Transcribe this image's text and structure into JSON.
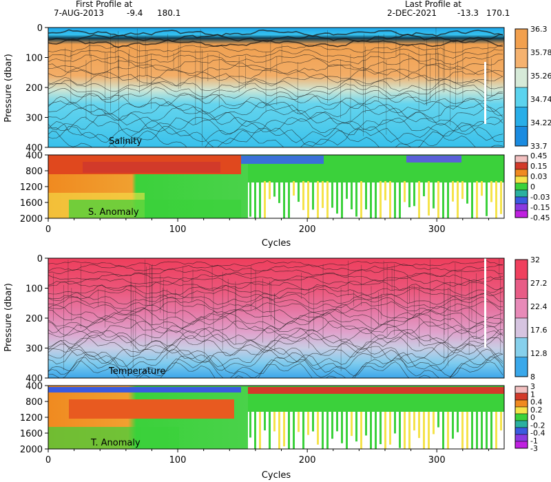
{
  "header": {
    "first_label": "First Profile at",
    "first_date": "7-AUG-2013",
    "first_lat": "-9.4",
    "first_lon": "180.1",
    "last_label": "Last Profile at",
    "last_date": "2-DEC-2021",
    "last_lat": "-13.3",
    "last_lon": "170.1"
  },
  "chart_data": [
    {
      "type": "heatmap",
      "title": "Salinity",
      "ylabel": "Pressure (dbar)",
      "xlim": [
        0,
        352
      ],
      "ylim": [
        400,
        0
      ],
      "yticks": [
        0,
        100,
        200,
        300,
        400
      ],
      "colorbar": {
        "labels": [
          "36.3",
          "35.78",
          "35.26",
          "34.74",
          "34.22",
          "33.7"
        ],
        "colors": [
          "#f2a04e",
          "#f5b26f",
          "#d6ead8",
          "#5bd3ee",
          "#28aee8",
          "#1a8be0"
        ]
      }
    },
    {
      "type": "heatmap",
      "title": "S. Anomaly",
      "xlabel": "Cycles",
      "xlim": [
        0,
        352
      ],
      "ylim": [
        2000,
        400
      ],
      "yticks": [
        400,
        800,
        1200,
        1600,
        2000
      ],
      "xticks": [
        0,
        100,
        200,
        300
      ],
      "colorbar": {
        "labels": [
          "0.45",
          "0.15",
          "0.03",
          "0",
          "-0.03",
          "-0.15",
          "-0.45"
        ],
        "colors": [
          "#f2c0c0",
          "#d23a2a",
          "#f08a20",
          "#f5e34a",
          "#3bd13b",
          "#2ab0a0",
          "#3a5be0",
          "#8a3ae0",
          "#c020e0"
        ]
      }
    },
    {
      "type": "heatmap",
      "title": "Temperature",
      "ylabel": "Pressure (dbar)",
      "xlim": [
        0,
        352
      ],
      "ylim": [
        400,
        0
      ],
      "yticks": [
        0,
        100,
        200,
        300,
        400
      ],
      "colorbar": {
        "labels": [
          "32",
          "27.2",
          "22.4",
          "17.6",
          "12.8",
          "8"
        ],
        "colors": [
          "#f0405e",
          "#e85c86",
          "#e88ab8",
          "#d6c4e0",
          "#86d0ec",
          "#3aa8ea"
        ]
      }
    },
    {
      "type": "heatmap",
      "title": "T. Anomaly",
      "xlabel": "Cycles",
      "xlim": [
        0,
        352
      ],
      "ylim": [
        2000,
        400
      ],
      "yticks": [
        400,
        800,
        1200,
        1600,
        2000
      ],
      "xticks": [
        0,
        100,
        200,
        300
      ],
      "colorbar": {
        "labels": [
          "3",
          "1",
          "0.4",
          "0.2",
          "0",
          "-0.2",
          "-0.4",
          "-1",
          "-3"
        ],
        "colors": [
          "#f2c0c0",
          "#d23a2a",
          "#f08a20",
          "#f5e34a",
          "#3bd13b",
          "#2ab0a0",
          "#3a5be0",
          "#8a3ae0",
          "#c020e0"
        ]
      }
    }
  ],
  "colors": {
    "salinity_top": "#2ab8ec",
    "salinity_mid": "#f2a04e",
    "salinity_bottom": "#5ed2ee",
    "temp_top": "#f0405e",
    "temp_mid": "#e88ab8",
    "temp_bottom": "#3aa8ea"
  }
}
